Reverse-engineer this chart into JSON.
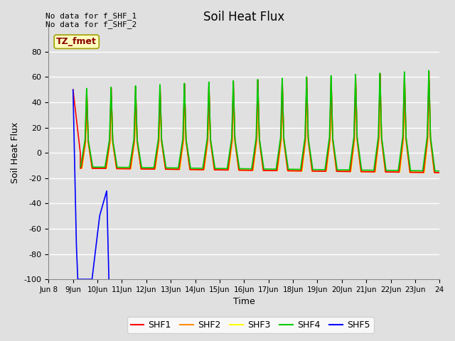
{
  "title": "Soil Heat Flux",
  "ylabel": "Soil Heat Flux",
  "xlabel": "Time",
  "ylim": [
    -100,
    100
  ],
  "no_data_text_1": "No data for f_SHF_1",
  "no_data_text_2": "No data for f_SHF_2",
  "tz_label": "TZ_fmet",
  "tz_bg": "#FFFFC0",
  "tz_border": "#A0A000",
  "bg_color": "#E0E0E0",
  "grid_color": "#FFFFFF",
  "series_colors": [
    "#FF0000",
    "#FF8C00",
    "#FFFF00",
    "#00CC00",
    "#0000FF"
  ],
  "series_names": [
    "SHF1",
    "SHF2",
    "SHF3",
    "SHF4",
    "SHF5"
  ],
  "xlim": [
    8,
    24
  ],
  "yticks": [
    -100,
    -80,
    -60,
    -40,
    -20,
    0,
    20,
    40,
    60,
    80
  ],
  "xtick_positions": [
    8,
    9,
    10,
    11,
    12,
    13,
    14,
    15,
    16,
    17,
    18,
    19,
    20,
    21,
    22,
    23,
    24
  ],
  "xtick_labels": [
    "Jun 8",
    "9Jun",
    "10Jun",
    "11Jun",
    "12Jun",
    "13Jun",
    "14Jun",
    "15Jun",
    "16Jun",
    "17Jun",
    "18Jun",
    "19Jun",
    "20Jun",
    "21Jun",
    "22Jun",
    "23Jun",
    "24"
  ]
}
